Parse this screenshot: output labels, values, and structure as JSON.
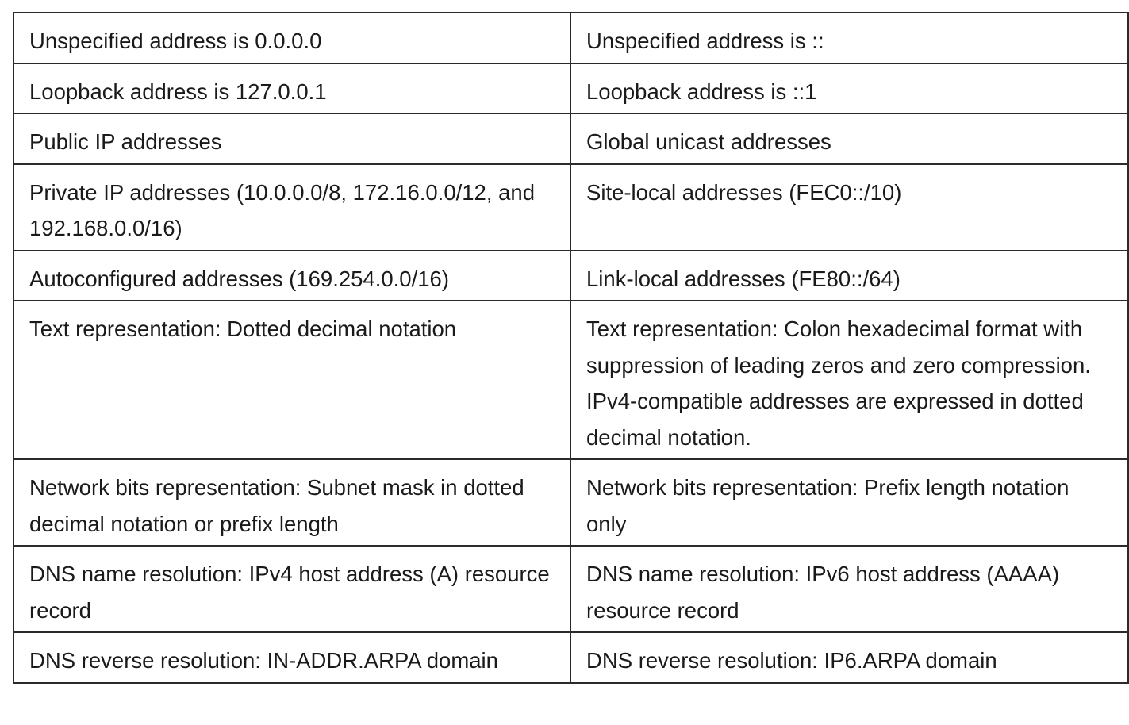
{
  "table": {
    "rows": [
      {
        "left": "Unspecified address is 0.0.0.0",
        "right": "Unspecified address is ::"
      },
      {
        "left": "Loopback address is 127.0.0.1",
        "right": "Loopback address is ::1"
      },
      {
        "left": "Public IP addresses",
        "right": "Global unicast addresses"
      },
      {
        "left": "Private IP addresses (10.0.0.0/8, 172.16.0.0/12, and 192.168.0.0/16)",
        "right": "Site-local addresses (FEC0::/10)"
      },
      {
        "left": "Autoconfigured addresses (169.254.0.0/16)",
        "right": "Link-local addresses (FE80::/64)"
      },
      {
        "left": "Text representation: Dotted decimal notation",
        "right": "Text representation: Colon hexadecimal format with suppression of leading zeros and zero compression. IPv4-compatible addresses are expressed in dotted decimal notation."
      },
      {
        "left": "Network bits representation: Subnet mask in dotted decimal notation or prefix length",
        "right": "Network bits representation: Prefix length notation only"
      },
      {
        "left": "DNS name resolution: IPv4 host address (A) resource record",
        "right": "DNS name resolution: IPv6 host address (AAAA) resource record"
      },
      {
        "left": "DNS reverse resolution: IN-ADDR.ARPA domain",
        "right": "DNS reverse resolution: IP6.ARPA domain"
      }
    ]
  }
}
